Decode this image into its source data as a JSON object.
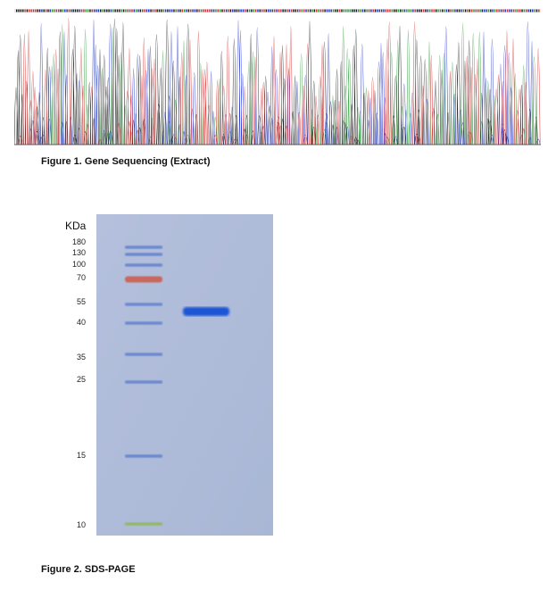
{
  "figure1": {
    "caption": "Figure 1. Gene Sequencing (Extract)",
    "trace_colors": {
      "A": "#2e9a3a",
      "C": "#2536c8",
      "G": "#1a1a1a",
      "T": "#d23030"
    }
  },
  "figure2": {
    "caption": "Figure 2. SDS-PAGE",
    "unit_label": "KDa",
    "markers": [
      {
        "label": "180",
        "color": "#5577cc"
      },
      {
        "label": "130",
        "color": "#5577cc"
      },
      {
        "label": "100",
        "color": "#5577cc"
      },
      {
        "label": "70",
        "color": "#cc5a4a"
      },
      {
        "label": "55",
        "color": "#5577cc"
      },
      {
        "label": "40",
        "color": "#5577cc"
      },
      {
        "label": "35",
        "color": "#5577cc"
      },
      {
        "label": "25",
        "color": "#5577cc"
      },
      {
        "label": "15",
        "color": "#5577cc"
      },
      {
        "label": "10",
        "color": "#8ab840"
      }
    ],
    "gel_background": "#aebbd8",
    "sample_band_color": "#1a55d6"
  }
}
